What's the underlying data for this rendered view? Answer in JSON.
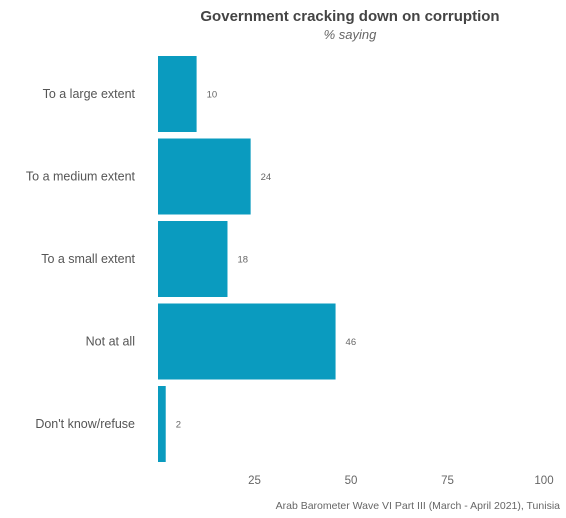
{
  "chart_data": {
    "type": "bar",
    "orientation": "horizontal",
    "title": "Government cracking down on corruption",
    "subtitle": "% saying",
    "categories": [
      "To a large extent",
      "To a medium extent",
      "To a small extent",
      "Not at all",
      "Don't know/refuse"
    ],
    "values": [
      10,
      24,
      18,
      46,
      2
    ],
    "x_ticks": [
      25,
      50,
      75,
      100
    ],
    "xlim": [
      0,
      100
    ],
    "grid": false,
    "bar_color": "#0a9bbf",
    "caption": "Arab Barometer Wave VI Part III (March - April 2021), Tunisia"
  }
}
